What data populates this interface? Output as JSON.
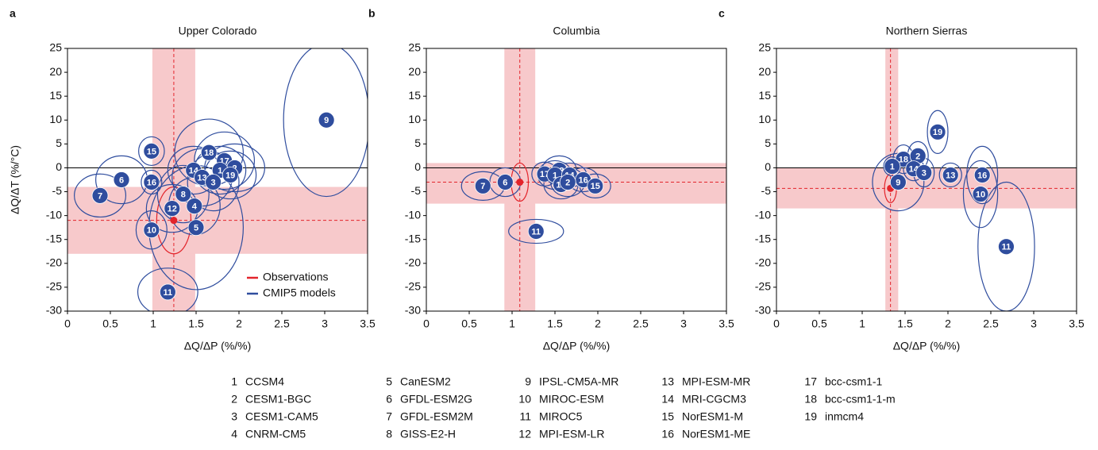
{
  "chart_data": [
    {
      "type": "scatter",
      "panel": "a",
      "title": "Upper Colorado",
      "xlabel": "ΔQ/ΔP (%/%)",
      "ylabel": "ΔQ/ΔT (%/°C)",
      "xlim": [
        0,
        3.5
      ],
      "ylim": [
        -30,
        25
      ],
      "xticks": [
        0,
        0.5,
        1,
        1.5,
        2,
        2.5,
        3,
        3.5
      ],
      "yticks": [
        -30,
        -25,
        -20,
        -15,
        -10,
        -5,
        0,
        5,
        10,
        15,
        20,
        25
      ],
      "obs_xband": [
        0.99,
        1.49
      ],
      "obs_yband": [
        -18,
        -4
      ],
      "series": [
        {
          "name": "Observations",
          "color": "#e3242b",
          "x": [
            1.24
          ],
          "values": [
            -11
          ],
          "x_err": [
            0.2
          ],
          "y_err": [
            7
          ]
        },
        {
          "name": "CMIP5 models",
          "color": "#2f4d9e",
          "labels": [
            "9",
            "15",
            "6",
            "7",
            "16",
            "14",
            "18",
            "17",
            "2",
            "1",
            "19",
            "13",
            "3",
            "8",
            "12",
            "4",
            "10",
            "5",
            "11"
          ],
          "x": [
            3.02,
            0.98,
            0.63,
            0.38,
            0.98,
            1.47,
            1.65,
            1.83,
            1.95,
            1.78,
            1.9,
            1.57,
            1.7,
            1.35,
            1.22,
            1.48,
            0.98,
            1.5,
            1.17
          ],
          "values": [
            10,
            3.5,
            -2.5,
            -5.8,
            -3,
            -0.5,
            3.2,
            1.5,
            0,
            -0.5,
            -1.5,
            -2,
            -3,
            -5.5,
            -8.5,
            -8,
            -13,
            -12.5,
            -26
          ],
          "x_err": [
            0.5,
            0.15,
            0.3,
            0.3,
            0.12,
            0.3,
            0.4,
            0.35,
            0.35,
            0.3,
            0.3,
            0.35,
            0.3,
            0.3,
            0.3,
            0.3,
            0.18,
            0.55,
            0.35
          ],
          "y_err": [
            16,
            3,
            5,
            4.5,
            2.5,
            5,
            7,
            6,
            5,
            5,
            5,
            6,
            6,
            6,
            5,
            6,
            4,
            13,
            5
          ]
        }
      ]
    },
    {
      "type": "scatter",
      "panel": "b",
      "title": "Columbia",
      "xlabel": "ΔQ/ΔP (%/%)",
      "xlim": [
        0,
        3.5
      ],
      "ylim": [
        -30,
        25
      ],
      "xticks": [
        0,
        0.5,
        1,
        1.5,
        2,
        2.5,
        3,
        3.5
      ],
      "yticks": [
        -30,
        -25,
        -20,
        -15,
        -10,
        -5,
        0,
        5,
        10,
        15,
        20,
        25
      ],
      "obs_xband": [
        0.91,
        1.27
      ],
      "obs_yband": [
        -7.5,
        1
      ],
      "series": [
        {
          "color": "#e3242b",
          "x": [
            1.09
          ],
          "values": [
            -3
          ],
          "x_err": [
            0.1
          ],
          "y_err": [
            4
          ]
        },
        {
          "color": "#2f4d9e",
          "labels": [
            "7",
            "6",
            "17",
            "18",
            "1",
            "14",
            "16",
            "19",
            "2",
            "15",
            "11"
          ],
          "x": [
            0.66,
            0.92,
            1.38,
            1.55,
            1.5,
            1.67,
            1.83,
            1.57,
            1.65,
            1.97,
            1.28
          ],
          "values": [
            -3.8,
            -3,
            -1.3,
            -0.5,
            -1.5,
            -1.5,
            -2.5,
            -3.5,
            -3,
            -3.8,
            -13.3
          ],
          "x_err": [
            0.25,
            0.18,
            0.15,
            0.2,
            0.2,
            0.2,
            0.18,
            0.2,
            0.2,
            0.18,
            0.32
          ],
          "y_err": [
            3,
            3,
            2.5,
            3,
            3,
            2.5,
            2.5,
            3,
            3,
            2.5,
            2.5
          ]
        }
      ]
    },
    {
      "type": "scatter",
      "panel": "c",
      "title": "Northern Sierras",
      "xlabel": "ΔQ/ΔP (%/%)",
      "xlim": [
        0,
        3.5
      ],
      "ylim": [
        -30,
        25
      ],
      "xticks": [
        0,
        0.5,
        1,
        1.5,
        2,
        2.5,
        3,
        3.5
      ],
      "yticks": [
        -30,
        -25,
        -20,
        -15,
        -10,
        -5,
        0,
        5,
        10,
        15,
        20,
        25
      ],
      "obs_xband": [
        1.27,
        1.42
      ],
      "obs_yband": [
        -8.5,
        0
      ],
      "series": [
        {
          "color": "#e3242b",
          "x": [
            1.33
          ],
          "values": [
            -4.3
          ],
          "x_err": [
            0.07
          ],
          "y_err": [
            3
          ]
        },
        {
          "color": "#2f4d9e",
          "labels": [
            "19",
            "18",
            "2",
            "1",
            "14",
            "3",
            "9",
            "13",
            "16",
            "10",
            "11"
          ],
          "x": [
            1.88,
            1.48,
            1.65,
            1.35,
            1.6,
            1.72,
            1.42,
            2.03,
            2.4,
            2.38,
            2.68
          ],
          "values": [
            7.5,
            1.8,
            2.5,
            0.3,
            -0.2,
            -1,
            -3,
            -1.5,
            -1.5,
            -5.5,
            -16.5
          ],
          "x_err": [
            0.12,
            0.12,
            0.12,
            0.1,
            0.12,
            0.12,
            0.3,
            0.13,
            0.18,
            0.2,
            0.33
          ],
          "y_err": [
            4.5,
            3,
            3,
            2,
            2.5,
            3,
            6,
            2.5,
            6,
            7,
            13.5
          ]
        }
      ]
    }
  ],
  "model_key": [
    {
      "number": 1,
      "name": "CCSM4"
    },
    {
      "number": 2,
      "name": "CESM1-BGC"
    },
    {
      "number": 3,
      "name": "CESM1-CAM5"
    },
    {
      "number": 4,
      "name": "CNRM-CM5"
    },
    {
      "number": 5,
      "name": "CanESM2"
    },
    {
      "number": 6,
      "name": "GFDL-ESM2G"
    },
    {
      "number": 7,
      "name": "GFDL-ESM2M"
    },
    {
      "number": 8,
      "name": "GISS-E2-H"
    },
    {
      "number": 9,
      "name": "IPSL-CM5A-MR"
    },
    {
      "number": 10,
      "name": "MIROC-ESM"
    },
    {
      "number": 11,
      "name": "MIROC5"
    },
    {
      "number": 12,
      "name": "MPI-ESM-LR"
    },
    {
      "number": 13,
      "name": "MPI-ESM-MR"
    },
    {
      "number": 14,
      "name": "MRI-CGCM3"
    },
    {
      "number": 15,
      "name": "NorESM1-M"
    },
    {
      "number": 16,
      "name": "NorESM1-ME"
    },
    {
      "number": 17,
      "name": "bcc-csm1-1"
    },
    {
      "number": 18,
      "name": "bcc-csm1-1-m"
    },
    {
      "number": 19,
      "name": "inmcm4"
    }
  ]
}
